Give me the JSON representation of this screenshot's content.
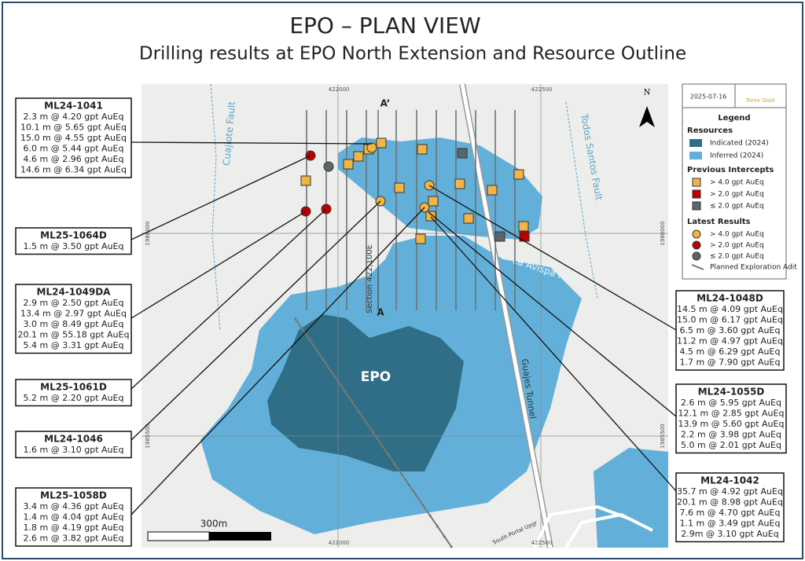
{
  "header": {
    "title": "EPO – PLAN VIEW",
    "subtitle": "Drilling results at EPO North Extension and Resource Outline"
  },
  "map": {
    "grid_labels": {
      "x_top": [
        "422000",
        "422500"
      ],
      "x_bottom": [
        "422000",
        "422500"
      ],
      "y_left": [
        "1986000",
        "1985500"
      ],
      "y_right": [
        "1986000",
        "1985500"
      ]
    },
    "labels": {
      "cuajiote": "Cuajiote Fault",
      "todos": "Todos Santos Fault",
      "avispa": "La Avispa Fault",
      "guajes": "Guajes Tunnel",
      "portal": "South Portal Upgr",
      "section": "Section 422,100E",
      "a_prime": "A’",
      "a": "A",
      "epo": "EPO",
      "scale": "300m",
      "north": "N"
    }
  },
  "legend": {
    "date": "2025-07-16",
    "logo": "Torex Gold",
    "title": "Legend",
    "resources": "Resources",
    "indicated": "Indicated (2024)",
    "inferred": "Inferred (2024)",
    "previous": "Previous Intercepts",
    "prev_items": [
      "> 4.0 gpt AuEq",
      "> 2.0 gpt AuEq",
      "≤ 2.0 gpt AuEq"
    ],
    "latest": "Latest Results",
    "latest_items": [
      "> 4.0 gpt AuEq",
      "> 2.0 gpt AuEq",
      "≤ 2.0 gpt AuEq"
    ],
    "adit": "Planned Exploration Adit"
  },
  "callouts": [
    {
      "hole": "ML24-1041",
      "results": [
        "2.3 m @ 4.20 gpt AuEq",
        "10.1 m @ 5.65 gpt AuEq",
        "15.0 m @ 4.55 gpt AuEq",
        "6.0 m @ 5.44 gpt AuEq",
        "4.6 m @ 2.96 gpt AuEq",
        "14.6 m @ 6.34 gpt AuEq"
      ]
    },
    {
      "hole": "ML25-1064D",
      "results": [
        "1.5 m @ 3.50 gpt AuEq"
      ]
    },
    {
      "hole": "ML24-1049DA",
      "results": [
        "2.9 m @ 2.50 gpt AuEq",
        "13.4 m @ 2.97 gpt AuEq",
        "3.0 m @ 8.49 gpt AuEq",
        "20.1 m @ 55.18 gpt AuEq",
        "5.4 m @ 3.31 gpt AuEq"
      ]
    },
    {
      "hole": "ML25-1061D",
      "results": [
        "5.2 m @ 2.20 gpt AuEq"
      ]
    },
    {
      "hole": "ML24-1046",
      "results": [
        "1.6 m @ 3.10 gpt AuEq"
      ]
    },
    {
      "hole": "ML25-1058D",
      "results": [
        "3.4 m @ 4.36 gpt AuEq",
        "1.4 m @ 4.04 gpt AuEq",
        "1.8 m @ 4.19 gpt AuEq",
        "2.6 m @ 3.82 gpt AuEq"
      ]
    },
    {
      "hole": "ML24-1048D",
      "results": [
        "14.5 m @ 4.09 gpt AuEq",
        "15.0 m @ 6.17 gpt AuEq",
        "6.5 m @ 3.60 gpt AuEq",
        "11.2 m @ 4.97 gpt AuEq",
        "4.5 m @ 6.29 gpt AuEq",
        "1.7 m @ 7.90 gpt AuEq"
      ]
    },
    {
      "hole": "ML24-1055D",
      "results": [
        "2.6 m @ 5.95 gpt AuEq",
        "12.1 m @ 2.85 gpt AuEq",
        "13.9 m @ 5.60 gpt AuEq",
        "2.2 m @ 3.98 gpt AuEq",
        "5.0 m @ 2.01 gpt AuEq"
      ]
    },
    {
      "hole": "ML24-1042",
      "results": [
        "35.7 m @ 4.92 gpt AuEq",
        "20.1 m @ 8.98 gpt AuEq",
        "7.6 m @ 4.70 gpt AuEq",
        "1.1 m @ 3.49 gpt AuEq",
        "2.9m @ 3.10 gpt AuEq"
      ]
    }
  ]
}
